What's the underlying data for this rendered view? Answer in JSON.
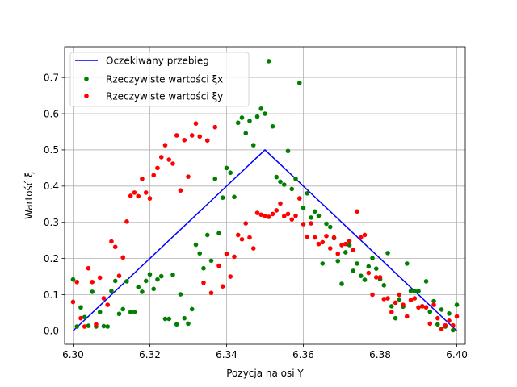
{
  "chart_data": {
    "type": "scatter",
    "xlabel": "Pozycja na osi Y",
    "ylabel": "Wartość ξ",
    "xlim": [
      6.2978,
      6.4022
    ],
    "ylim": [
      -0.037,
      0.785
    ],
    "xticks": [
      6.3,
      6.32,
      6.34,
      6.36,
      6.38,
      6.4
    ],
    "xtick_labels": [
      "6.30",
      "6.32",
      "6.34",
      "6.36",
      "6.38",
      "6.40"
    ],
    "yticks": [
      0.0,
      0.1,
      0.2,
      0.3,
      0.4,
      0.5,
      0.6,
      0.7
    ],
    "ytick_labels": [
      "0.0",
      "0.1",
      "0.2",
      "0.3",
      "0.4",
      "0.5",
      "0.6",
      "0.7"
    ],
    "grid": true,
    "legend_position": "top-left",
    "series": [
      {
        "name": "Oczekiwany przebieg",
        "kind": "line",
        "color": "#0000ff",
        "x": [
          6.3,
          6.35,
          6.4
        ],
        "y": [
          0.0,
          0.5,
          0.0
        ]
      },
      {
        "name": "Rzeczywiste wartości ξx",
        "kind": "scatter",
        "color": "#008000",
        "x": [
          6.3,
          6.301,
          6.302,
          6.303,
          6.304,
          6.305,
          6.306,
          6.307,
          6.308,
          6.309,
          6.31,
          6.311,
          6.312,
          6.313,
          6.314,
          6.315,
          6.316,
          6.317,
          6.318,
          6.319,
          6.32,
          6.321,
          6.322,
          6.323,
          6.324,
          6.325,
          6.326,
          6.327,
          6.328,
          6.329,
          6.33,
          6.331,
          6.332,
          6.333,
          6.334,
          6.335,
          6.336,
          6.337,
          6.338,
          6.339,
          6.34,
          6.341,
          6.342,
          6.343,
          6.344,
          6.345,
          6.346,
          6.347,
          6.348,
          6.349,
          6.35,
          6.351,
          6.352,
          6.353,
          6.354,
          6.355,
          6.356,
          6.357,
          6.358,
          6.359,
          6.36,
          6.361,
          6.362,
          6.363,
          6.364,
          6.365,
          6.366,
          6.367,
          6.368,
          6.369,
          6.37,
          6.371,
          6.372,
          6.373,
          6.374,
          6.375,
          6.376,
          6.377,
          6.378,
          6.379,
          6.38,
          6.381,
          6.382,
          6.383,
          6.384,
          6.385,
          6.386,
          6.387,
          6.388,
          6.389,
          6.39,
          6.391,
          6.392,
          6.393,
          6.394,
          6.395,
          6.396,
          6.397,
          6.398,
          6.399,
          6.4
        ],
        "y": [
          0.142,
          0.012,
          0.065,
          0.038,
          0.014,
          0.108,
          0.012,
          0.052,
          0.013,
          0.012,
          0.11,
          0.138,
          0.047,
          0.06,
          0.137,
          0.052,
          0.052,
          0.121,
          0.108,
          0.138,
          0.156,
          0.116,
          0.142,
          0.151,
          0.033,
          0.033,
          0.155,
          0.018,
          0.101,
          0.035,
          0.02,
          0.06,
          0.238,
          0.214,
          0.173,
          0.265,
          0.194,
          0.42,
          0.27,
          0.368,
          0.45,
          0.437,
          0.37,
          0.575,
          0.589,
          0.546,
          0.58,
          0.513,
          0.592,
          0.614,
          0.6,
          0.745,
          0.565,
          0.425,
          0.412,
          0.404,
          0.497,
          0.392,
          0.42,
          0.685,
          0.34,
          0.38,
          0.313,
          0.33,
          0.318,
          0.186,
          0.296,
          0.287,
          0.256,
          0.193,
          0.13,
          0.217,
          0.237,
          0.166,
          0.186,
          0.152,
          0.141,
          0.178,
          0.201,
          0.172,
          0.143,
          0.126,
          0.215,
          0.068,
          0.035,
          0.087,
          0.067,
          0.186,
          0.11,
          0.11,
          0.11,
          0.068,
          0.137,
          0.053,
          0.082,
          0.018,
          0.059,
          0.012,
          0.048,
          0.002,
          0.072
        ]
      },
      {
        "name": "Rzeczywiste wartości ξy",
        "kind": "scatter",
        "color": "#ff0000",
        "x": [
          6.3,
          6.301,
          6.302,
          6.303,
          6.304,
          6.305,
          6.306,
          6.307,
          6.308,
          6.309,
          6.31,
          6.311,
          6.312,
          6.313,
          6.314,
          6.315,
          6.316,
          6.317,
          6.318,
          6.319,
          6.32,
          6.321,
          6.322,
          6.323,
          6.324,
          6.325,
          6.326,
          6.327,
          6.328,
          6.329,
          6.33,
          6.331,
          6.332,
          6.333,
          6.334,
          6.335,
          6.336,
          6.337,
          6.338,
          6.339,
          6.34,
          6.341,
          6.342,
          6.343,
          6.344,
          6.345,
          6.346,
          6.347,
          6.348,
          6.349,
          6.35,
          6.351,
          6.352,
          6.353,
          6.354,
          6.355,
          6.356,
          6.357,
          6.358,
          6.359,
          6.36,
          6.361,
          6.362,
          6.363,
          6.364,
          6.365,
          6.366,
          6.367,
          6.368,
          6.369,
          6.37,
          6.371,
          6.372,
          6.373,
          6.374,
          6.375,
          6.376,
          6.377,
          6.378,
          6.379,
          6.38,
          6.381,
          6.382,
          6.383,
          6.384,
          6.385,
          6.386,
          6.387,
          6.388,
          6.389,
          6.39,
          6.391,
          6.392,
          6.393,
          6.394,
          6.395,
          6.396,
          6.397,
          6.398,
          6.399,
          6.4
        ],
        "y": [
          0.08,
          0.135,
          0.035,
          0.012,
          0.173,
          0.135,
          0.018,
          0.147,
          0.09,
          0.072,
          0.247,
          0.232,
          0.152,
          0.203,
          0.302,
          0.373,
          0.382,
          0.372,
          0.42,
          0.382,
          0.366,
          0.43,
          0.45,
          0.48,
          0.513,
          0.473,
          0.462,
          0.54,
          0.388,
          0.527,
          0.426,
          0.54,
          0.573,
          0.537,
          0.133,
          0.526,
          0.105,
          0.563,
          0.18,
          0.123,
          0.213,
          0.15,
          0.205,
          0.265,
          0.253,
          0.297,
          0.258,
          0.228,
          0.326,
          0.321,
          0.318,
          0.315,
          0.323,
          0.333,
          0.352,
          0.317,
          0.323,
          0.308,
          0.318,
          0.366,
          0.295,
          0.26,
          0.297,
          0.258,
          0.24,
          0.245,
          0.262,
          0.228,
          0.258,
          0.213,
          0.237,
          0.24,
          0.248,
          0.223,
          0.33,
          0.258,
          0.265,
          0.16,
          0.1,
          0.148,
          0.148,
          0.088,
          0.09,
          0.052,
          0.078,
          0.1,
          0.072,
          0.04,
          0.085,
          0.09,
          0.065,
          0.068,
          0.065,
          0.02,
          0.072,
          0.035,
          0.005,
          0.015,
          0.028,
          0.015,
          0.04
        ]
      }
    ]
  }
}
